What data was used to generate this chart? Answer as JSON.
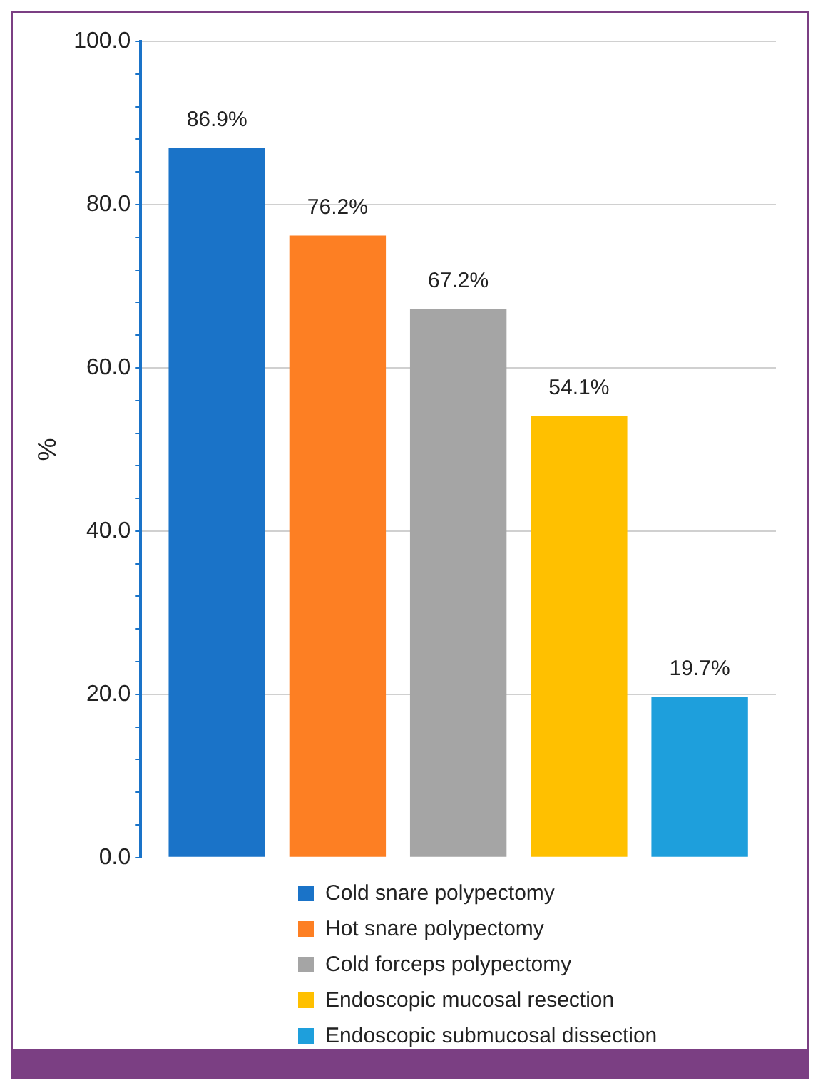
{
  "chart_data": {
    "type": "bar",
    "ylabel": "%",
    "categories": [
      null
    ],
    "series": [
      {
        "name": "Cold snare polypectomy",
        "color": "#1a73c8",
        "values": [
          86.9
        ],
        "value_labels": [
          "86.9%"
        ]
      },
      {
        "name": "Hot snare polypectomy",
        "color": "#fd7f23",
        "values": [
          76.2
        ],
        "value_labels": [
          "76.2%"
        ]
      },
      {
        "name": "Cold forceps polypectomy",
        "color": "#a5a5a5",
        "values": [
          67.2
        ],
        "value_labels": [
          "67.2%"
        ]
      },
      {
        "name": "Endoscopic mucosal resection",
        "color": "#ffc000",
        "values": [
          54.1
        ],
        "value_labels": [
          "54.1%"
        ]
      },
      {
        "name": "Endoscopic submucosal dissection",
        "color": "#1e9fdc",
        "values": [
          19.7
        ],
        "value_labels": [
          "19.7%"
        ]
      }
    ],
    "ylim": [
      0,
      100
    ],
    "yticks": [
      {
        "value": 0,
        "label": "0.0"
      },
      {
        "value": 4,
        "label": null
      },
      {
        "value": 8,
        "label": null
      },
      {
        "value": 12,
        "label": null
      },
      {
        "value": 16,
        "label": null
      },
      {
        "value": 20,
        "label": "20.0"
      },
      {
        "value": 24,
        "label": null
      },
      {
        "value": 28,
        "label": null
      },
      {
        "value": 32,
        "label": null
      },
      {
        "value": 36,
        "label": null
      },
      {
        "value": 40,
        "label": "40.0"
      },
      {
        "value": 44,
        "label": null
      },
      {
        "value": 48,
        "label": null
      },
      {
        "value": 52,
        "label": null
      },
      {
        "value": 56,
        "label": null
      },
      {
        "value": 60,
        "label": "60.0"
      },
      {
        "value": 64,
        "label": null
      },
      {
        "value": 68,
        "label": null
      },
      {
        "value": 72,
        "label": null
      },
      {
        "value": 76,
        "label": null
      },
      {
        "value": 80,
        "label": "80.0"
      },
      {
        "value": 84,
        "label": null
      },
      {
        "value": 88,
        "label": null
      },
      {
        "value": 92,
        "label": null
      },
      {
        "value": 96,
        "label": null
      },
      {
        "value": 100,
        "label": "100.0"
      }
    ],
    "grid": "y",
    "legend": "bottom"
  }
}
